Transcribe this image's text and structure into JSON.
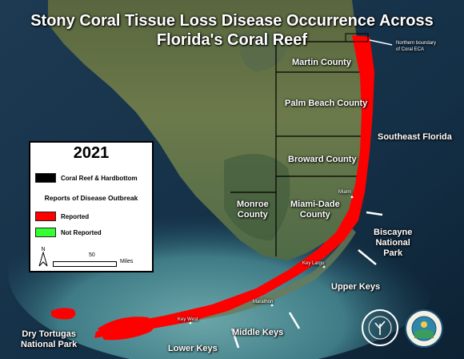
{
  "title_line1": "Stony Coral Tissue Loss Disease Occurrence Across",
  "title_line2": "Florida's Coral Reef",
  "legend": {
    "year": "2021",
    "coral_label": "Coral Reef & Hardbottom",
    "subtitle": "Reports of Disease Outbreak",
    "reported_label": "Reported",
    "not_reported_label": "Not Reported",
    "scale_value": "50",
    "scale_unit": "Miles",
    "north": "N",
    "colors": {
      "coral": "#000000",
      "reported": "#ff0000",
      "not_reported": "#33ff33"
    }
  },
  "counties": {
    "martin": "Martin County",
    "palm_beach": "Palm Beach County",
    "broward": "Broward County",
    "miami_dade_1": "Miami-Dade",
    "miami_dade_2": "County",
    "monroe_1": "Monroe",
    "monroe_2": "County"
  },
  "regions": {
    "southeast": "Southeast Florida",
    "biscayne_1": "Biscayne",
    "biscayne_2": "National",
    "biscayne_3": "Park",
    "upper_keys": "Upper Keys",
    "middle_keys": "Middle Keys",
    "lower_keys": "Lower Keys",
    "dry_tortugas_1": "Dry Tortugas",
    "dry_tortugas_2": "National Park",
    "northern_boundary_1": "Northern boundary",
    "northern_boundary_2": "of Coral ECA"
  },
  "places": {
    "miami": "Miami",
    "key_largo": "Key Largo",
    "marathon": "Marathon",
    "key_west": "Key West"
  },
  "logos": {
    "florida_reef": "FLORIDA'S CORAL REEF",
    "fdep": "FLORIDA DEPARTMENT OF ENVIRONMENTAL PROTECTION"
  }
}
